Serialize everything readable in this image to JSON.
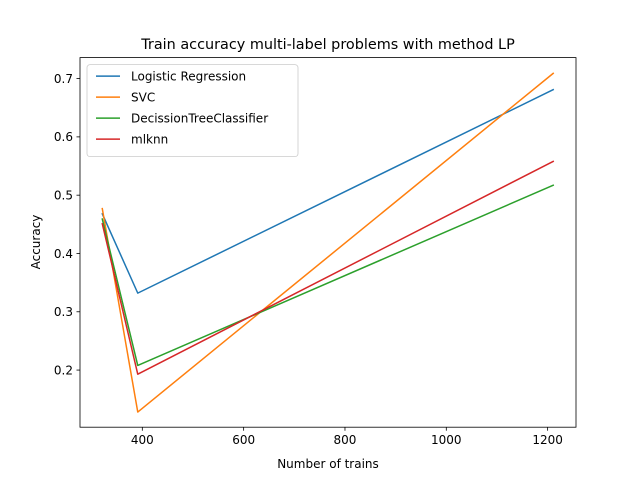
{
  "chart_data": {
    "type": "line",
    "title": "Train accuracy multi-label problems with method LP",
    "xlabel": "Number of trains",
    "ylabel": "Accuracy",
    "xlim": [
      277,
      1256
    ],
    "ylim": [
      0.102,
      0.736
    ],
    "xticks": [
      400,
      600,
      800,
      1000,
      1200
    ],
    "yticks": [
      0.2,
      0.3,
      0.4,
      0.5,
      0.6,
      0.7
    ],
    "xtick_labels": [
      "400",
      "600",
      "800",
      "1000",
      "1200"
    ],
    "ytick_labels": [
      "0.2",
      "0.3",
      "0.4",
      "0.5",
      "0.6",
      "0.7"
    ],
    "x": [
      321,
      391,
      1211
    ],
    "grid": false,
    "legend_position": "upper left",
    "series": [
      {
        "name": "Logistic Regression",
        "color": "#1f77b4",
        "values": [
          0.468,
          0.332,
          0.681
        ]
      },
      {
        "name": "SVC",
        "color": "#ff7f0e",
        "values": [
          0.477,
          0.128,
          0.709
        ]
      },
      {
        "name": "DecissionTreeClassifier",
        "color": "#2ca02c",
        "values": [
          0.459,
          0.208,
          0.517
        ]
      },
      {
        "name": "mlknn",
        "color": "#d62728",
        "values": [
          0.451,
          0.193,
          0.558
        ]
      }
    ]
  }
}
